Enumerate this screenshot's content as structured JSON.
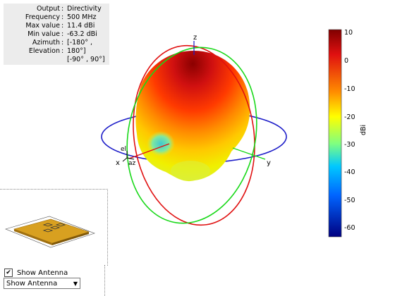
{
  "info": {
    "rows": [
      {
        "key": "Output",
        "val": "Directivity"
      },
      {
        "key": "Frequency",
        "val": "500 MHz"
      },
      {
        "key": "Max value",
        "val": "11.4 dBi"
      },
      {
        "key": "Min value",
        "val": "-63.2 dBi"
      },
      {
        "key": "Azimuth",
        "val": "[-180° ,"
      },
      {
        "key": "Elevation",
        "val": "180°]"
      },
      {
        "key": "",
        "val": "[-90° , 90°]"
      }
    ],
    "separator": ":"
  },
  "axes": {
    "x": "x",
    "y": "y",
    "z": "z",
    "el": "el",
    "az": "az"
  },
  "colorbar": {
    "label": "dBi",
    "ticks": [
      "10",
      "0",
      "-10",
      "-20",
      "-30",
      "-40",
      "-50",
      "-60"
    ]
  },
  "controls": {
    "show_antenna_check_label": "Show Antenna",
    "show_antenna_checked": "✔",
    "dropdown_value": "Show Antenna",
    "dropdown_arrow": "▼"
  }
}
